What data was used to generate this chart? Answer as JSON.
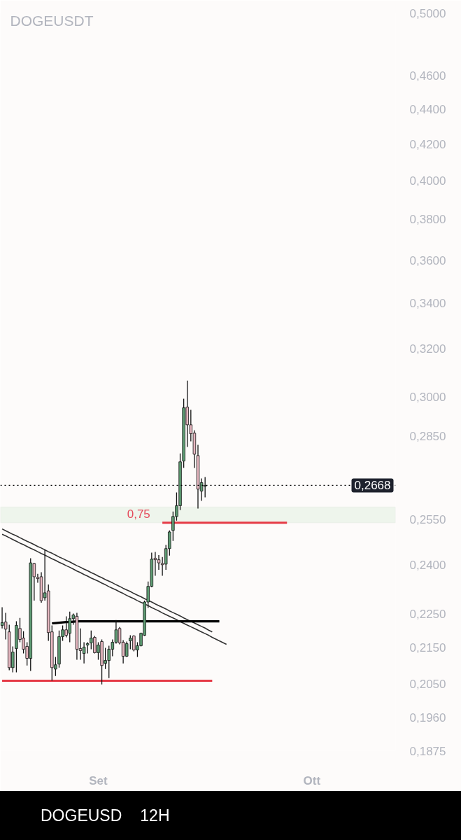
{
  "chart_data": {
    "type": "candlestick",
    "title": "DOGEUSDT",
    "categories": [
      null,
      null,
      null,
      null,
      null,
      null,
      null,
      null,
      null,
      null,
      null,
      null,
      null,
      null,
      null,
      null,
      null,
      null,
      null,
      null,
      null,
      null,
      null,
      null,
      null,
      null,
      null,
      "Set",
      null,
      null,
      null,
      null,
      null,
      null,
      null,
      null,
      null,
      null,
      null,
      null,
      null,
      null,
      null,
      null,
      null,
      null,
      null,
      null,
      null,
      null,
      null,
      null,
      null,
      null,
      null,
      null,
      null,
      null,
      null,
      null,
      null,
      null,
      null,
      null,
      null,
      null,
      null,
      null,
      null,
      null,
      null,
      null,
      null,
      null,
      null,
      null,
      null,
      null,
      null,
      null,
      null,
      null,
      null,
      null,
      null,
      null,
      null,
      "Ott",
      null,
      null,
      null,
      null,
      null,
      null,
      null,
      null,
      null,
      null,
      null,
      null,
      null,
      null,
      null,
      null,
      null,
      null,
      null,
      null,
      null,
      null,
      null
    ],
    "ohlc": [
      [
        0.2215,
        0.2269,
        0.2206,
        0.2223
      ],
      [
        0.2225,
        0.2252,
        0.2174,
        0.2204
      ],
      [
        0.2196,
        0.2217,
        0.2087,
        0.2094
      ],
      [
        0.2094,
        0.2154,
        0.2081,
        0.2138
      ],
      [
        0.2148,
        0.2227,
        0.2081,
        0.2215
      ],
      [
        0.2206,
        0.2237,
        0.2166,
        0.2174
      ],
      [
        0.2178,
        0.2198,
        0.2134,
        0.2146
      ],
      [
        0.2154,
        0.2166,
        0.21,
        0.212
      ],
      [
        0.212,
        0.2422,
        0.2085,
        0.2407
      ],
      [
        0.2405,
        0.2407,
        0.2289,
        0.2363
      ],
      [
        0.2361,
        0.2372,
        0.2344,
        0.2357
      ],
      [
        0.2363,
        0.2377,
        0.2283,
        0.2289
      ],
      [
        0.2298,
        0.2449,
        0.2289,
        0.2313
      ],
      [
        0.2319,
        0.2339,
        0.217,
        0.2194
      ],
      [
        0.2196,
        0.2215,
        0.2058,
        0.2094
      ],
      [
        0.209,
        0.2124,
        0.2071,
        0.2102
      ],
      [
        0.2104,
        0.22,
        0.2094,
        0.2182
      ],
      [
        0.2182,
        0.2215,
        0.217,
        0.2202
      ],
      [
        0.2202,
        0.2242,
        0.218,
        0.2186
      ],
      [
        0.2192,
        0.2256,
        0.2166,
        0.2235
      ],
      [
        0.2235,
        0.225,
        0.2217,
        0.2246
      ],
      [
        0.2242,
        0.2252,
        0.2116,
        0.2146
      ],
      [
        0.2148,
        0.2206,
        0.2116,
        0.2142
      ],
      [
        0.2134,
        0.2166,
        0.2106,
        0.2152
      ],
      [
        0.2158,
        0.2166,
        0.2134,
        0.2162
      ],
      [
        0.2164,
        0.22,
        0.2146,
        0.2178
      ],
      [
        0.218,
        0.2184,
        0.2134,
        0.2136
      ],
      [
        0.2136,
        0.2166,
        0.2116,
        0.2158
      ],
      [
        0.2168,
        0.2174,
        0.2048,
        0.21
      ],
      [
        0.2106,
        0.215,
        0.209,
        0.2114
      ],
      [
        0.2114,
        0.2156,
        0.2065,
        0.2146
      ],
      [
        0.2146,
        0.2174,
        0.2126,
        0.2166
      ],
      [
        0.2166,
        0.2231,
        0.2162,
        0.2202
      ],
      [
        0.2206,
        0.221,
        0.216,
        0.2164
      ],
      [
        0.2166,
        0.2172,
        0.2106,
        0.2126
      ],
      [
        0.2126,
        0.2168,
        0.2124,
        0.2162
      ],
      [
        0.217,
        0.2186,
        0.2146,
        0.2178
      ],
      [
        0.2184,
        0.2186,
        0.214,
        0.2144
      ],
      [
        0.2144,
        0.2166,
        0.2124,
        0.2156
      ],
      [
        0.2156,
        0.2194,
        0.2154,
        0.2192
      ],
      [
        0.2186,
        0.2289,
        0.2184,
        0.2285
      ],
      [
        0.2285,
        0.2348,
        0.2267,
        0.2333
      ],
      [
        0.2333,
        0.244,
        0.233,
        0.2419
      ],
      [
        0.2422,
        0.2442,
        0.2366,
        0.2417
      ],
      [
        0.2417,
        0.2432,
        0.2385,
        0.2407
      ],
      [
        0.2405,
        0.2426,
        0.2366,
        0.2401
      ],
      [
        0.2403,
        0.2465,
        0.2385,
        0.2453
      ],
      [
        0.2453,
        0.2513,
        0.243,
        0.2508
      ],
      [
        0.2513,
        0.2577,
        0.2478,
        0.256
      ],
      [
        0.256,
        0.2643,
        0.2546,
        0.2597
      ],
      [
        0.2597,
        0.2784,
        0.2582,
        0.2753
      ],
      [
        0.2756,
        0.2994,
        0.2731,
        0.2958
      ],
      [
        0.2961,
        0.3067,
        0.2808,
        0.2892
      ],
      [
        0.2892,
        0.295,
        0.2829,
        0.2858
      ],
      [
        0.286,
        0.2871,
        0.2731,
        0.2781
      ],
      [
        0.2776,
        0.2816,
        0.2587,
        0.2655
      ],
      [
        0.2648,
        0.2693,
        0.2614,
        0.2678
      ],
      [
        0.2665,
        0.2698,
        0.2626,
        0.2668
      ],
      null,
      null,
      null,
      null,
      null,
      null,
      null,
      null,
      null,
      null,
      null,
      null,
      null,
      null,
      null,
      null,
      null,
      null,
      null,
      null,
      null,
      null,
      null,
      null,
      null,
      null,
      null,
      null,
      null,
      null,
      null,
      null,
      null,
      null,
      null,
      null,
      null,
      null,
      null,
      null,
      null,
      null,
      null,
      null,
      null,
      null,
      null,
      null,
      null,
      null,
      null,
      null,
      null
    ],
    "colors": [
      "#5f9d74",
      "#e7b7c0",
      "#e7b7c0",
      "#5f9d74",
      "#5f9d74",
      "#e7b7c0",
      "#e7b7c0",
      "#e7b7c0",
      "#5f9d74",
      "#e7b7c0",
      "#e7b7c0",
      "#e7b7c0",
      "#5f9d74",
      "#e7b7c0",
      "#e7b7c0",
      "#5f9d74",
      "#5f9d74",
      "#5f9d74",
      "#e7b7c0",
      "#5f9d74",
      "#5f9d74",
      "#e7b7c0",
      "#e7b7c0",
      "#5f9d74",
      "#5f9d74",
      "#5f9d74",
      "#e7b7c0",
      "#5f9d74",
      "#e7b7c0",
      "#5f9d74",
      "#5f9d74",
      "#5f9d74",
      "#5f9d74",
      "#e7b7c0",
      "#e7b7c0",
      "#5f9d74",
      "#5f9d74",
      "#e7b7c0",
      "#5f9d74",
      "#5f9d74",
      "#5f9d74",
      "#5f9d74",
      "#5f9d74",
      "#e7b7c0",
      "#e7b7c0",
      "#e7b7c0",
      "#5f9d74",
      "#5f9d74",
      "#5f9d74",
      "#5f9d74",
      "#5f9d74",
      "#5f9d74",
      "#e7b7c0",
      "#e7b7c0",
      "#e7b7c0",
      "#e7b7c0",
      "#5f9d74",
      "#5f9d74",
      null,
      null,
      null,
      null,
      null,
      null,
      null,
      null,
      null,
      null,
      null,
      null,
      null,
      null,
      null,
      null,
      null,
      null,
      null,
      null,
      null,
      null,
      null,
      null,
      null,
      null,
      null,
      null,
      null,
      null,
      null,
      null,
      null,
      null,
      null,
      null,
      null,
      null,
      null,
      null,
      null,
      null,
      null,
      null,
      null,
      null,
      null,
      null,
      null,
      null,
      null,
      null,
      null
    ],
    "series": [
      {
        "type": "line",
        "color": "#333333",
        "values": [
          0.2518,
          0.2512,
          0.2506,
          0.25,
          0.2495,
          0.2489,
          0.2483,
          0.2477,
          0.2472,
          0.2466,
          0.246,
          0.2455,
          0.2449,
          0.2443,
          0.2438,
          0.2432,
          0.2426,
          0.2421,
          0.2415,
          0.241,
          0.2404,
          0.2398,
          0.2393,
          0.2387,
          0.2382,
          0.2376,
          0.2371,
          0.2365,
          0.236,
          0.2354,
          0.2349,
          0.2344,
          0.2338,
          0.2333,
          0.2327,
          0.2322,
          0.2317,
          0.2311,
          0.2306,
          0.2301,
          0.2295,
          0.229,
          0.2285,
          0.2279,
          0.2274,
          0.2269,
          0.2264,
          0.2258,
          0.2253,
          0.2248,
          0.2243,
          0.2237,
          0.2232,
          0.2227,
          0.2222,
          0.2217,
          0.2212,
          0.2207,
          0.2201,
          0.2196,
          null,
          null,
          null,
          null,
          null,
          null,
          null,
          null,
          null,
          null,
          null,
          null,
          null,
          null,
          null,
          null,
          null,
          null,
          null,
          null,
          null,
          null,
          null,
          null,
          null,
          null,
          null,
          null,
          null,
          null,
          null,
          null,
          null,
          null,
          null,
          null,
          null,
          null,
          null,
          null,
          null,
          null,
          null,
          null,
          null,
          null,
          null,
          null,
          null,
          null,
          null
        ]
      },
      {
        "type": "line",
        "color": "#333333",
        "values": [
          0.25,
          0.2495,
          0.2489,
          0.2483,
          0.2477,
          0.2471,
          0.2466,
          0.246,
          0.2454,
          0.2449,
          0.2443,
          0.2437,
          0.2432,
          0.2426,
          0.242,
          0.2415,
          0.2409,
          0.2404,
          0.2398,
          0.2393,
          0.2387,
          0.2381,
          0.2376,
          0.237,
          0.2365,
          0.2359,
          0.2354,
          0.2349,
          0.2343,
          0.2338,
          0.2332,
          0.2327,
          0.2322,
          0.2316,
          0.2311,
          0.2305,
          0.23,
          0.2295,
          0.2289,
          0.2284,
          0.2279,
          0.2274,
          0.2268,
          0.2263,
          0.2258,
          0.2252,
          0.2247,
          0.2242,
          0.2237,
          0.2232,
          0.2226,
          0.2221,
          0.2216,
          0.2211,
          0.2206,
          0.2201,
          0.2196,
          0.2191,
          0.2186,
          0.218,
          0.2175,
          0.217,
          0.2165,
          0.216,
          null,
          null,
          null,
          null,
          null,
          null,
          null,
          null,
          null,
          null,
          null,
          null,
          null,
          null,
          null,
          null,
          null,
          null,
          null,
          null,
          null,
          null,
          null,
          null,
          null,
          null,
          null,
          null,
          null,
          null,
          null,
          null,
          null,
          null,
          null,
          null,
          null,
          null,
          null,
          null,
          null,
          null,
          null,
          null,
          null,
          null,
          null
        ]
      },
      {
        "type": "line",
        "color": "#000000",
        "values": [
          null,
          null,
          null,
          null,
          null,
          null,
          null,
          null,
          null,
          null,
          null,
          null,
          null,
          null,
          0.2221,
          0.2222,
          0.2223,
          0.2224,
          0.2225,
          0.2225,
          0.2226,
          0.2227,
          0.2227,
          0.2227,
          0.2227,
          0.2227,
          0.2227,
          0.2227,
          0.2227,
          0.2227,
          0.2227,
          0.2227,
          0.2227,
          0.2227,
          0.2227,
          0.2227,
          0.2227,
          0.2227,
          0.2227,
          0.2227,
          0.2227,
          0.2227,
          0.2227,
          0.2227,
          0.2227,
          0.2227,
          0.2227,
          0.2227,
          0.2227,
          0.2227,
          0.2227,
          0.2227,
          0.2227,
          0.2227,
          0.2227,
          0.2227,
          0.2227,
          0.2227,
          0.2227,
          0.2227,
          0.2227,
          0.2227,
          null,
          null,
          null,
          null,
          null,
          null,
          null,
          null,
          null,
          null,
          null,
          null,
          null,
          null,
          null,
          null,
          null,
          null,
          null,
          null,
          null,
          null,
          null,
          null,
          null,
          null,
          null,
          null,
          null,
          null,
          null,
          null,
          null,
          null,
          null,
          null,
          null,
          null,
          null,
          null,
          null,
          null,
          null,
          null,
          null,
          null,
          null,
          null,
          null
        ]
      },
      {
        "type": "line",
        "color": "#e53945",
        "values": [
          0.2058,
          0.2058,
          0.2058,
          0.2058,
          0.2058,
          0.2058,
          0.2058,
          0.2058,
          0.2058,
          0.2058,
          0.2058,
          0.2058,
          0.2058,
          0.2058,
          0.2058,
          0.2058,
          0.2058,
          0.2058,
          0.2058,
          0.2058,
          0.2058,
          0.2058,
          0.2058,
          0.2058,
          0.2058,
          0.2058,
          0.2058,
          0.2058,
          0.2058,
          0.2058,
          0.2058,
          0.2058,
          0.2058,
          0.2058,
          0.2058,
          0.2058,
          0.2058,
          0.2058,
          0.2058,
          0.2058,
          0.2058,
          0.2058,
          0.2058,
          0.2058,
          0.2058,
          0.2058,
          0.2058,
          0.2058,
          0.2058,
          0.2058,
          0.2058,
          0.2058,
          0.2058,
          0.2058,
          0.2058,
          0.2058,
          0.2058,
          0.2058,
          0.2058,
          0.2058,
          null,
          null,
          null,
          null,
          null,
          null,
          null,
          null,
          null,
          null,
          null,
          null,
          null,
          null,
          null,
          null,
          null,
          null,
          null,
          null,
          null,
          null,
          null,
          null,
          null,
          null,
          null,
          null,
          null,
          null,
          null,
          null,
          null,
          null,
          null,
          null,
          null,
          null,
          null,
          null,
          null,
          null,
          null,
          null,
          null,
          null,
          null,
          null,
          null,
          null,
          null
        ]
      },
      {
        "type": "line",
        "color": "#e53945",
        "values": [
          null,
          null,
          null,
          null,
          null,
          null,
          null,
          null,
          null,
          null,
          null,
          null,
          null,
          null,
          null,
          null,
          null,
          null,
          null,
          null,
          null,
          null,
          null,
          null,
          null,
          null,
          null,
          null,
          null,
          null,
          null,
          null,
          null,
          null,
          null,
          null,
          null,
          null,
          null,
          null,
          null,
          null,
          null,
          null,
          null,
          0.2539,
          0.2539,
          0.2539,
          0.2539,
          0.2539,
          0.2539,
          0.2539,
          0.2539,
          0.2539,
          0.2539,
          0.2539,
          0.2539,
          0.2539,
          0.2539,
          0.2539,
          0.2539,
          0.2539,
          0.2539,
          0.2539,
          0.2539,
          0.2539,
          0.2539,
          0.2539,
          0.2539,
          0.2539,
          0.2539,
          0.2539,
          0.2539,
          0.2539,
          0.2539,
          0.2539,
          0.2539,
          0.2539,
          0.2539,
          0.2539,
          0.2539,
          null,
          null,
          null,
          null,
          null,
          null,
          null,
          null,
          null,
          null,
          null,
          null,
          null,
          null,
          null,
          null,
          null,
          null,
          null,
          null,
          null,
          null,
          null,
          null,
          null,
          null,
          null,
          null,
          null,
          null
        ]
      }
    ],
    "ref_lines": [
      {
        "axis": "y",
        "value": 0.2668,
        "label": "0,2668",
        "color": "#000000",
        "line_style": "dotted"
      }
    ],
    "bands": [
      {
        "axis": "y",
        "from": 0.2539,
        "to": 0.2592,
        "label": "0,75",
        "color": "#eef5ec"
      }
    ],
    "ylim": [
      0.1875,
      0.5
    ],
    "log": true,
    "yticks": [
      {
        "value": 0.5,
        "label": "0,5000"
      },
      {
        "value": 0.46,
        "label": "0,4600"
      },
      {
        "value": 0.44,
        "label": "0,4400"
      },
      {
        "value": 0.42,
        "label": "0,4200"
      },
      {
        "value": 0.4,
        "label": "0,4000"
      },
      {
        "value": 0.38,
        "label": "0,3800"
      },
      {
        "value": 0.36,
        "label": "0,3600"
      },
      {
        "value": 0.34,
        "label": "0,3400"
      },
      {
        "value": 0.32,
        "label": "0,3200"
      },
      {
        "value": 0.3,
        "label": "0,3000"
      },
      {
        "value": 0.285,
        "label": "0,2850"
      },
      {
        "value": 0.255,
        "label": "0,2550"
      },
      {
        "value": 0.24,
        "label": "0,2400"
      },
      {
        "value": 0.225,
        "label": "0,2250"
      },
      {
        "value": 0.215,
        "label": "0,2150"
      },
      {
        "value": 0.205,
        "label": "0,2050"
      },
      {
        "value": 0.196,
        "label": "0,1960"
      },
      {
        "value": 0.1875,
        "label": "0,1875"
      }
    ],
    "annotations": [
      "DOGEUSD",
      "12H"
    ]
  }
}
